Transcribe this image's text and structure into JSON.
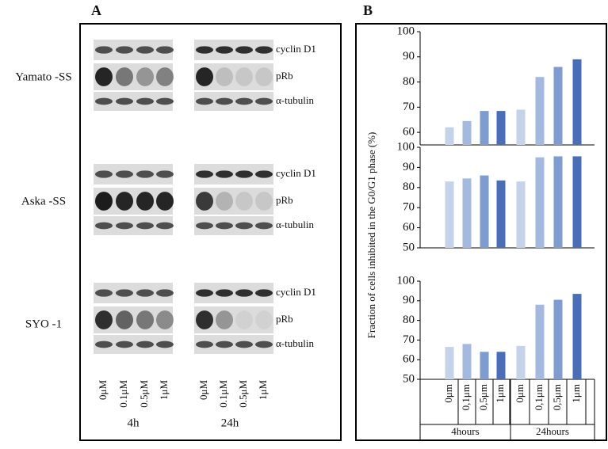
{
  "panel_a": {
    "label": "A",
    "cell_lines": [
      {
        "name": "Yamato -SS",
        "proteins": [
          "cyclin D1",
          "pRb",
          "α-tubulin"
        ]
      },
      {
        "name": "Aska -SS",
        "proteins": [
          "cyclin D1",
          "pRb",
          "α-tubulin"
        ]
      },
      {
        "name": "SYO -1",
        "proteins": [
          "cyclin D1",
          "pRb",
          "α-tubulin"
        ]
      }
    ],
    "lanes": [
      "0μM",
      "0.1μM",
      "0.5μM",
      "1μM",
      "0μM",
      "0.1μM",
      "0.5μM",
      "1μM"
    ],
    "times": [
      "4h",
      "24h"
    ]
  },
  "panel_b": {
    "label": "B",
    "y_label": "Fraction of cells inhibited in the G0/G1 phase (%)"
  },
  "chart_data": [
    {
      "type": "bar",
      "values": [
        62,
        64.5,
        68.5,
        68.5,
        69,
        82,
        86,
        89
      ],
      "colors": [
        "#c5d3ea",
        "#a3b9df",
        "#7f9cd0",
        "#4a6db8",
        "#c5d3ea",
        "#a3b9df",
        "#7f9cd0",
        "#4a6db8"
      ],
      "ylim": [
        55,
        100
      ],
      "yticks": [
        60,
        70,
        80,
        90,
        100
      ]
    },
    {
      "type": "bar",
      "values": [
        83,
        84.5,
        86,
        83.5,
        83,
        95,
        95.5,
        95.5
      ],
      "colors": [
        "#c5d3ea",
        "#a3b9df",
        "#7f9cd0",
        "#4a6db8",
        "#c5d3ea",
        "#a3b9df",
        "#7f9cd0",
        "#4a6db8"
      ],
      "ylim": [
        50,
        100
      ],
      "yticks": [
        50,
        60,
        70,
        80,
        90,
        100
      ]
    },
    {
      "type": "bar",
      "values": [
        66.5,
        68,
        64,
        64,
        67,
        88,
        90.5,
        93.5
      ],
      "colors": [
        "#c5d3ea",
        "#a3b9df",
        "#7f9cd0",
        "#4a6db8",
        "#c5d3ea",
        "#a3b9df",
        "#7f9cd0",
        "#4a6db8"
      ],
      "ylim": [
        50,
        100
      ],
      "yticks": [
        50,
        60,
        70,
        80,
        90,
        100
      ],
      "categories": [
        "0μm",
        "0,1μm",
        "0,5μm",
        "1μm",
        "0μm",
        "0,1μm",
        "0,5μm",
        "1μm"
      ],
      "groups": [
        "4hours",
        "24hours"
      ]
    }
  ]
}
